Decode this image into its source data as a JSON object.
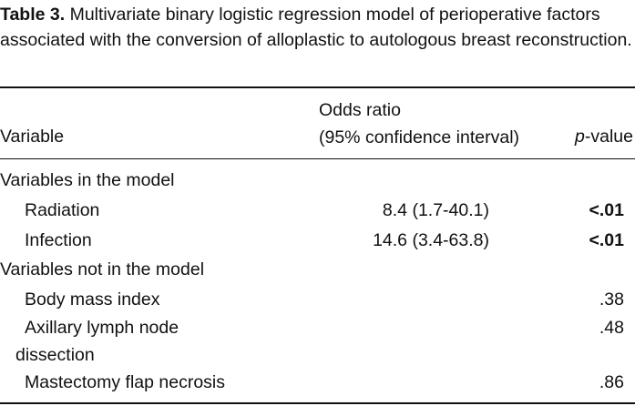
{
  "caption": {
    "label": "Table 3.",
    "text": "Multivariate binary logistic regression model of perioperative factors associated with the conversion of alloplastic to autologous breast reconstruction."
  },
  "header": {
    "variable": "Variable",
    "odds_ratio_line1": "Odds ratio",
    "odds_ratio_line2": "(95% confidence interval)",
    "p_value_italic": "p",
    "p_value_rest": "-value"
  },
  "rows": {
    "group1": "Variables in the model",
    "radiation": {
      "label": "Radiation",
      "or": "8.4 (1.7-40.1)",
      "p": "<.01"
    },
    "infection": {
      "label": "Infection",
      "or": "14.6 (3.4-63.8)",
      "p": "<.01"
    },
    "group2": "Variables not in the model",
    "bmi": {
      "label": "Body mass index",
      "p": ".38"
    },
    "axillary": {
      "label_line1": "Axillary lymph node",
      "label_line2": "dissection",
      "p": ".48"
    },
    "flap": {
      "label": "Mastectomy flap necrosis",
      "p": ".86"
    }
  }
}
